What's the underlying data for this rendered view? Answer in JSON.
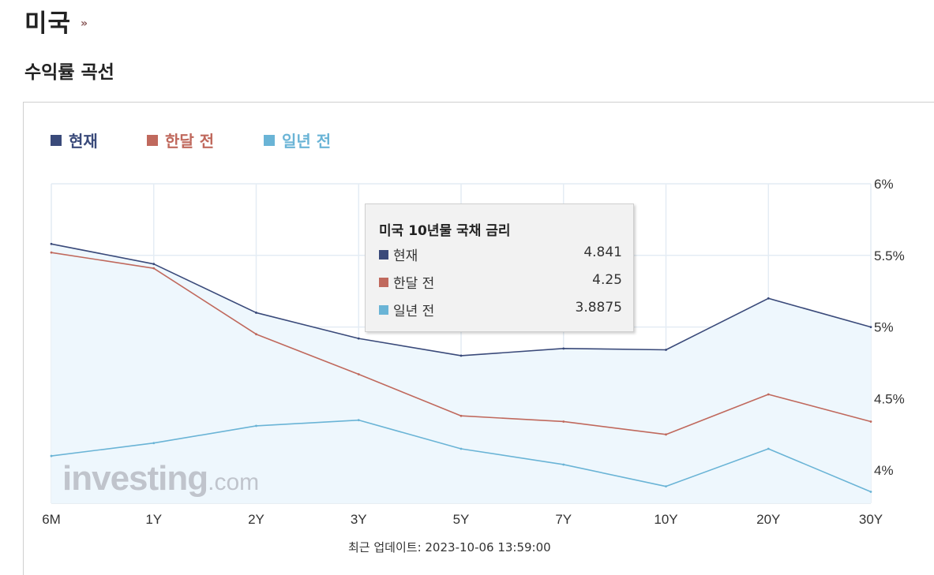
{
  "header": {
    "country": "미국",
    "arrow": "»",
    "section": "수익률 곡선"
  },
  "legend": [
    {
      "label": "현재",
      "color": "#3a4a7a"
    },
    {
      "label": "한달 전",
      "color": "#c0695d"
    },
    {
      "label": "일년 전",
      "color": "#6ab4d6"
    }
  ],
  "tooltip": {
    "title": "미국 10년물 국채 금리",
    "rows": [
      {
        "label": "현재",
        "value": "4.841",
        "color": "#3a4a7a"
      },
      {
        "label": "한달 전",
        "value": "4.25",
        "color": "#c0695d"
      },
      {
        "label": "일년 전",
        "value": "3.8875",
        "color": "#6ab4d6"
      }
    ]
  },
  "footer": {
    "update": "최근 업데이트: 2023-10-06 13:59:00"
  },
  "watermark": {
    "brand": "investing",
    "suffix": ".com"
  },
  "chart_data": {
    "type": "line",
    "categories": [
      "6M",
      "1Y",
      "2Y",
      "3Y",
      "5Y",
      "7Y",
      "10Y",
      "20Y",
      "30Y"
    ],
    "series": [
      {
        "name": "현재",
        "color": "#3a4a7a",
        "values": [
          5.58,
          5.44,
          5.1,
          4.92,
          4.8,
          4.85,
          4.841,
          5.2,
          5.0
        ]
      },
      {
        "name": "한달 전",
        "color": "#c0695d",
        "values": [
          5.52,
          5.41,
          4.95,
          4.67,
          4.38,
          4.34,
          4.25,
          4.53,
          4.34
        ]
      },
      {
        "name": "일년 전",
        "color": "#6ab4d6",
        "values": [
          4.1,
          4.19,
          4.31,
          4.35,
          4.15,
          4.04,
          3.8875,
          4.15,
          3.85
        ]
      }
    ],
    "yticks": [
      "4%",
      "4.5%",
      "5%",
      "5.5%",
      "6%"
    ],
    "ytick_values": [
      4,
      4.5,
      5,
      5.5,
      6
    ],
    "ylim": [
      3.77,
      6.0
    ],
    "grid": true,
    "area_fill": "#eef7fd",
    "legend_position": "top-left"
  }
}
